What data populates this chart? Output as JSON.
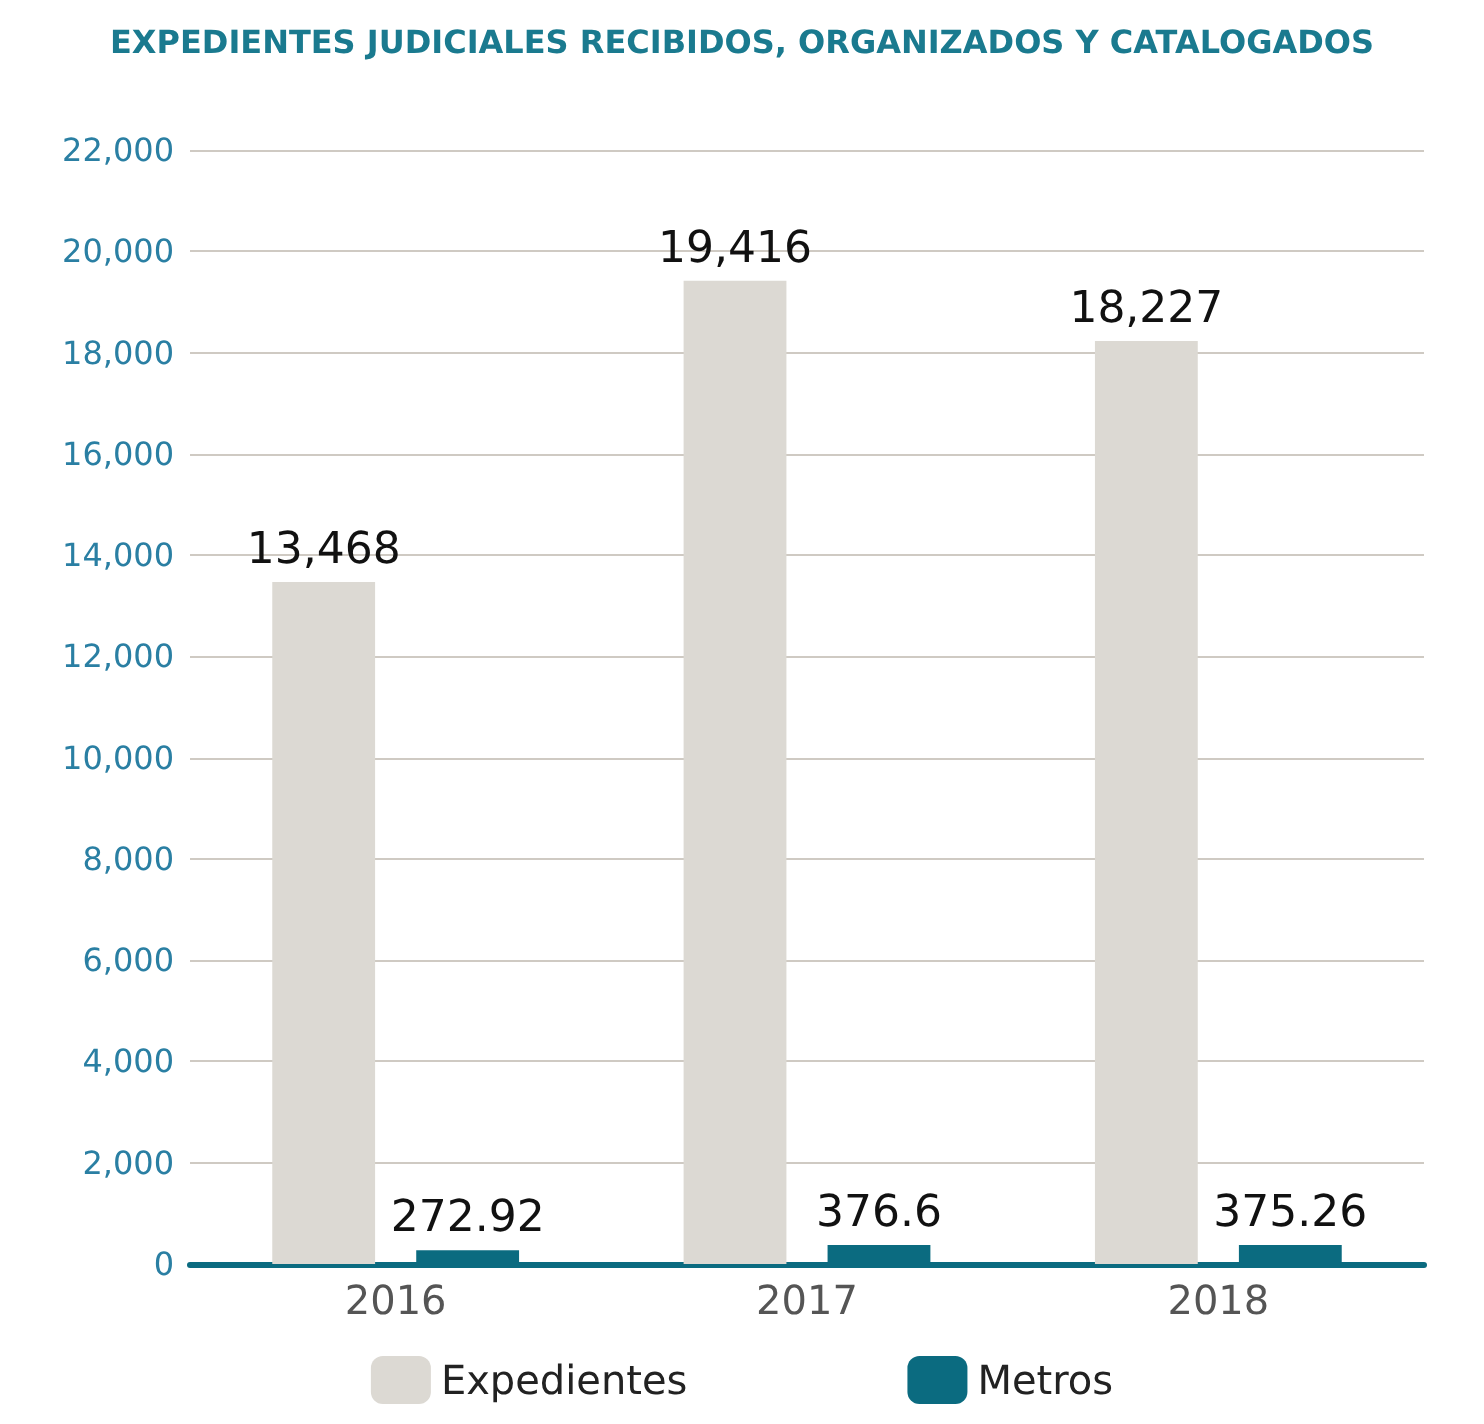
{
  "chart_data": {
    "type": "bar",
    "title": "EXPEDIENTES JUDICIALES RECIBIDOS, ORGANIZADOS Y CATALOGADOS",
    "categories": [
      "2016",
      "2017",
      "2018"
    ],
    "series": [
      {
        "name": "Expedientes",
        "color": "#dcd9d3",
        "values": [
          13468,
          19416,
          18227
        ],
        "value_labels": [
          "13,468",
          "19,416",
          "18,227"
        ]
      },
      {
        "name": "Metros",
        "color": "#0b6b80",
        "values": [
          272.92,
          376.6,
          375.26
        ],
        "value_labels": [
          "272.92",
          "376.6",
          "375.26"
        ]
      }
    ],
    "ylim": [
      0,
      22000
    ],
    "yticks": [
      {
        "value": 0,
        "label": "0"
      },
      {
        "value": 2000,
        "label": "2,000"
      },
      {
        "value": 4000,
        "label": "4,000"
      },
      {
        "value": 6000,
        "label": "6,000"
      },
      {
        "value": 8000,
        "label": "8,000"
      },
      {
        "value": 10000,
        "label": "10,000"
      },
      {
        "value": 12000,
        "label": "12,000"
      },
      {
        "value": 14000,
        "label": "14,000"
      },
      {
        "value": 16000,
        "label": "16,000"
      },
      {
        "value": 18000,
        "label": "18,000"
      },
      {
        "value": 20000,
        "label": "20,000"
      },
      {
        "value": 22000,
        "label": "22,000"
      }
    ],
    "grid": "y",
    "legend": "bottom"
  }
}
